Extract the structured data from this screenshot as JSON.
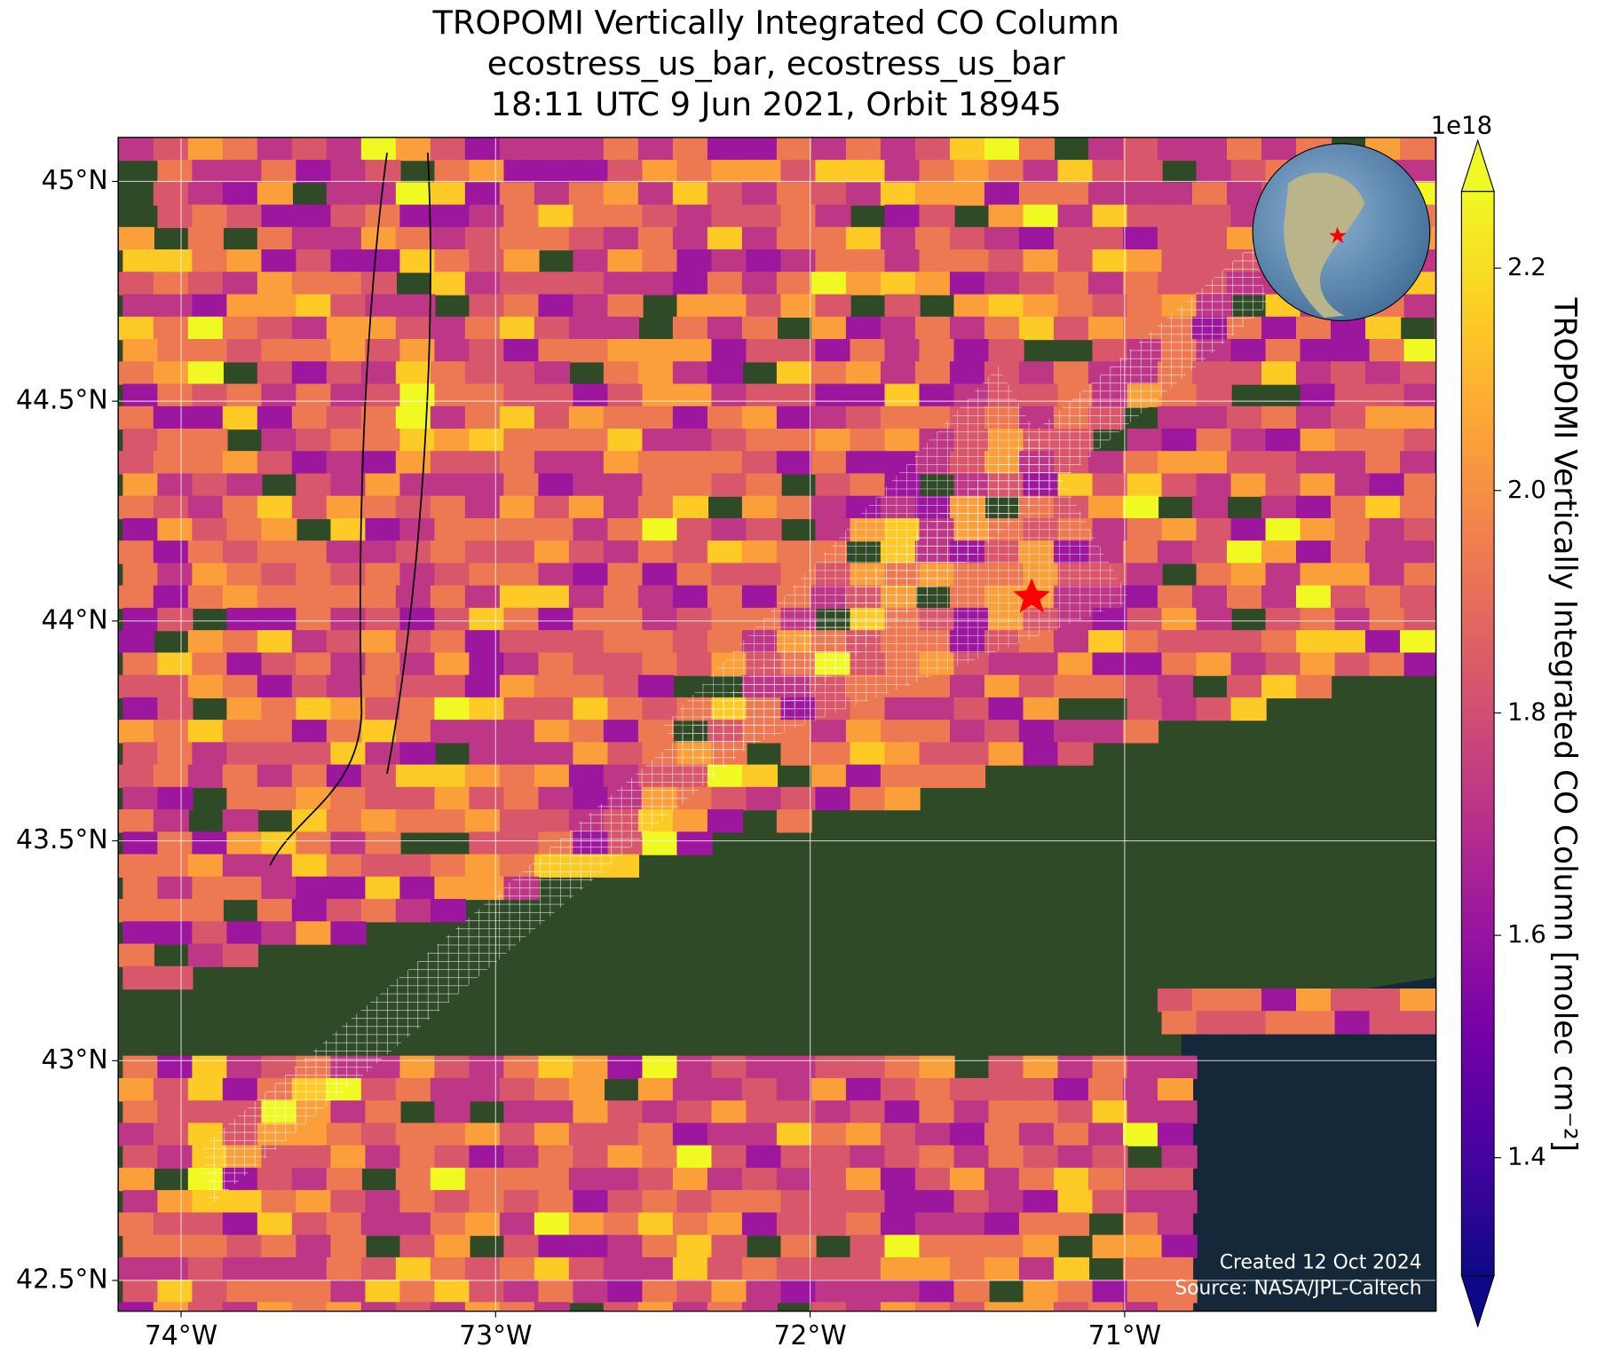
{
  "chart_data": {
    "type": "map",
    "title": [
      "TROPOMI Vertically Integrated CO Column",
      "ecostress_us_bar, ecostress_us_bar",
      "18:11 UTC 9 Jun 2021, Orbit 18945"
    ],
    "xlim": [
      -74.2,
      -70.01
    ],
    "ylim": [
      42.43,
      45.1
    ],
    "xticks": [
      {
        "value": -74,
        "label": "74°W"
      },
      {
        "value": -73,
        "label": "73°W"
      },
      {
        "value": -72,
        "label": "72°W"
      },
      {
        "value": -71,
        "label": "71°W"
      }
    ],
    "yticks": [
      {
        "value": 45,
        "label": "45°N"
      },
      {
        "value": 44.5,
        "label": "44.5°N"
      },
      {
        "value": 44,
        "label": "44°N"
      },
      {
        "value": 43.5,
        "label": "43.5°N"
      },
      {
        "value": 43,
        "label": "43°N"
      },
      {
        "value": 42.5,
        "label": "42.5°N"
      }
    ],
    "grid": true,
    "colorbar": {
      "label": "TROPOMI Vertically Integrated CO Column [molec cm⁻²]",
      "exponent": "1e18",
      "colormap": "plasma",
      "lim": [
        1.294,
        2.269
      ],
      "ticks": [
        1.4,
        1.6,
        1.8,
        {
          "value": 2.0,
          "label": "2.0"
        },
        2.2
      ]
    },
    "credits": [
      "Created 12 Oct 2024",
      "Source: NASA/JPL-Caltech"
    ]
  }
}
